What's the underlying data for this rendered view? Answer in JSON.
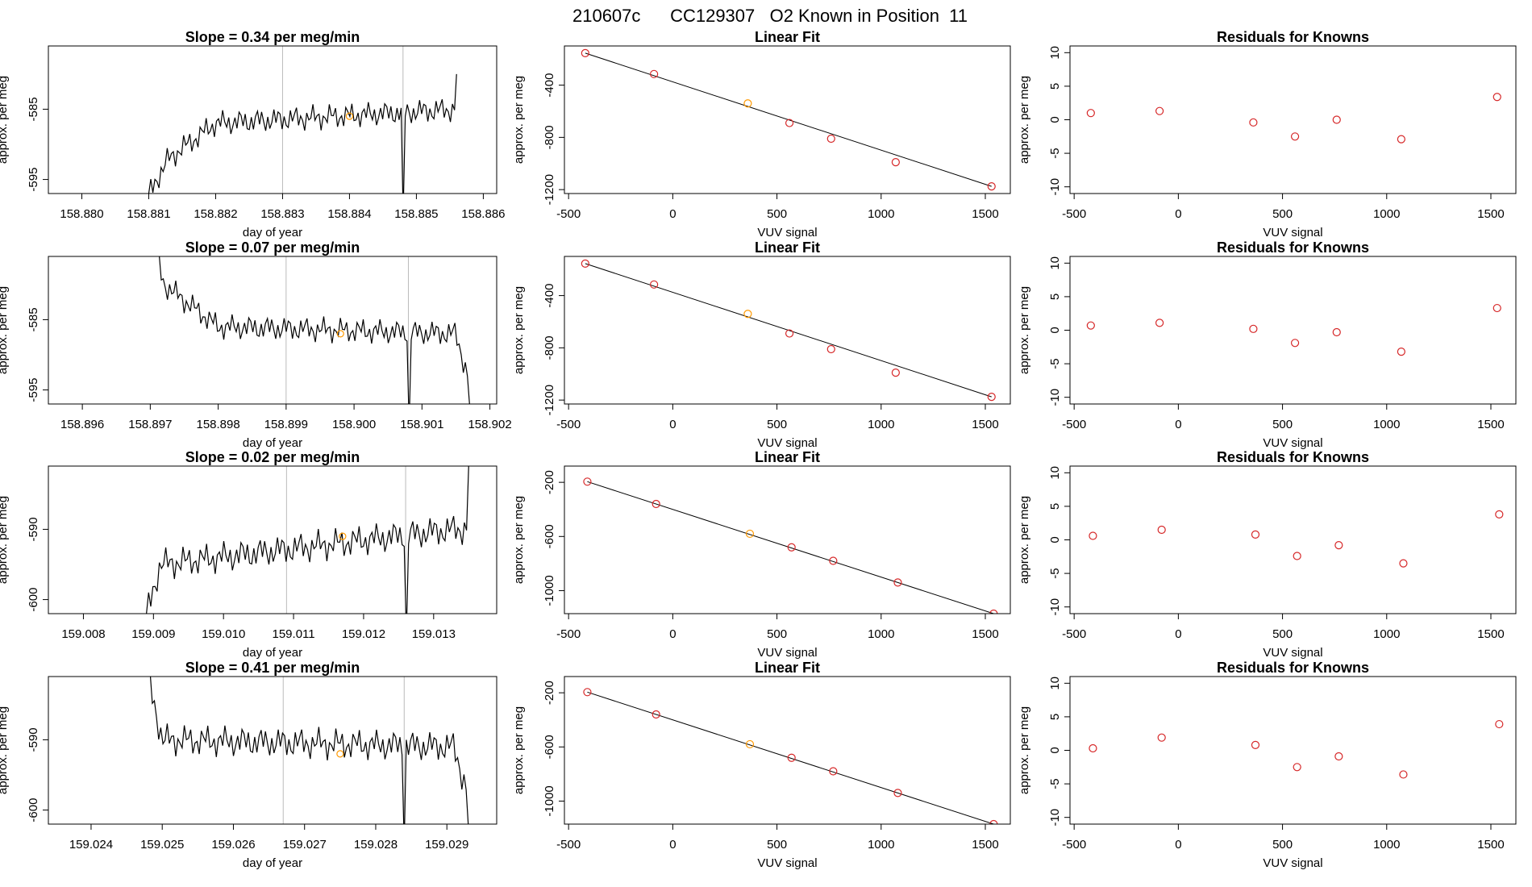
{
  "figure_title": "210607c      CC129307   O2 Known in Position  11",
  "colors": {
    "line": "#000000",
    "point": "#d62728",
    "highlight": "#ff9900",
    "vline": "#bbbbbb"
  },
  "chart_data": [
    {
      "row": 1,
      "series_plot": {
        "type": "line",
        "title": "Slope =  0.34  per meg/min",
        "xlabel": "day of year",
        "ylabel": "approx. per meg",
        "xlim": [
          158.8795,
          158.8862
        ],
        "ylim": [
          -597,
          -576
        ],
        "xticks": [
          158.88,
          158.881,
          158.882,
          158.883,
          158.884,
          158.885,
          158.886
        ],
        "xtick_labels": [
          "158.880",
          "158.881",
          "158.882",
          "158.883",
          "158.884",
          "158.885",
          "158.886"
        ],
        "yticks": [
          -585,
          -595
        ],
        "ytick_labels": [
          "-585",
          "-595"
        ],
        "vlines": [
          158.883,
          158.8848
        ],
        "marker": {
          "x": 158.884,
          "y": -586
        },
        "trace_start": {
          "x": 158.881,
          "y": -597
        },
        "trace_end": {
          "x": 158.8856,
          "y": -580
        },
        "anomaly": {
          "x": 158.8848,
          "y": -597
        },
        "segments": [
          {
            "x0": 158.881,
            "x1": 158.8813,
            "y0": -597,
            "y1": -592
          },
          {
            "x0": 158.8813,
            "x1": 158.882,
            "y0": -592,
            "y1": -587
          },
          {
            "x0": 158.882,
            "x1": 158.8856,
            "y0": -587,
            "y1": -585
          }
        ],
        "amplitude": 1.6
      },
      "fit_plot": {
        "type": "scatter",
        "title": "Linear Fit",
        "xlabel": "VUV signal",
        "ylabel": "approx. per meg",
        "xlim": [
          -520,
          1620
        ],
        "ylim": [
          -1230,
          -100
        ],
        "xticks": [
          -500,
          0,
          500,
          1000,
          1500
        ],
        "xtick_labels": [
          "-500",
          "0",
          "500",
          "1000",
          "1500"
        ],
        "yticks": [
          -400,
          -800,
          -1200
        ],
        "ytick_labels": [
          "-400",
          "-800",
          "-1200"
        ],
        "x": [
          -420,
          -90,
          360,
          560,
          760,
          1070,
          1530
        ],
        "y": [
          -155,
          -315,
          -540,
          -690,
          -810,
          -990,
          -1175
        ],
        "highlight_index": 2,
        "fit_line": {
          "x": [
            -420,
            1530
          ],
          "y": [
            -155,
            -1175
          ]
        }
      },
      "residual_plot": {
        "type": "scatter",
        "title": "Residuals for Knowns",
        "xlabel": "VUV signal",
        "ylabel": "approx. per meg",
        "xlim": [
          -520,
          1620
        ],
        "ylim": [
          -11,
          11
        ],
        "xticks": [
          -500,
          0,
          500,
          1000,
          1500
        ],
        "xtick_labels": [
          "-500",
          "0",
          "500",
          "1000",
          "1500"
        ],
        "yticks": [
          10,
          5,
          0,
          -5,
          -10
        ],
        "ytick_labels": [
          "10",
          "5",
          "0",
          "-5",
          "-10"
        ],
        "x": [
          -420,
          -90,
          360,
          560,
          760,
          1070,
          1530
        ],
        "y": [
          1.0,
          1.3,
          -0.4,
          -2.5,
          0.0,
          -2.9,
          3.4
        ]
      }
    },
    {
      "row": 2,
      "series_plot": {
        "type": "line",
        "title": "Slope =  0.07  per meg/min",
        "xlabel": "day of year",
        "ylabel": "approx. per meg",
        "xlim": [
          158.8955,
          158.9021
        ],
        "ylim": [
          -597,
          -576
        ],
        "xticks": [
          158.896,
          158.897,
          158.898,
          158.899,
          158.9,
          158.901,
          158.902
        ],
        "xtick_labels": [
          "158.896",
          "158.897",
          "158.898",
          "158.899",
          "158.900",
          "158.901",
          "158.902"
        ],
        "yticks": [
          -585,
          -595
        ],
        "ytick_labels": [
          "-585",
          "-595"
        ],
        "vlines": [
          158.899,
          158.9008
        ],
        "marker": {
          "x": 158.8998,
          "y": -587
        },
        "trace_start": {
          "x": 158.8971,
          "y": -576
        },
        "trace_end": {
          "x": 158.9017,
          "y": -597
        },
        "anomaly": {
          "x": 158.9008,
          "y": -597
        },
        "segments": [
          {
            "x0": 158.8971,
            "x1": 158.8972,
            "y0": -576,
            "y1": -580
          },
          {
            "x0": 158.8972,
            "x1": 158.898,
            "y0": -580,
            "y1": -586
          },
          {
            "x0": 158.898,
            "x1": 158.9015,
            "y0": -586,
            "y1": -587
          },
          {
            "x0": 158.9015,
            "x1": 158.9017,
            "y0": -587,
            "y1": -594
          }
        ],
        "amplitude": 1.6
      },
      "fit_plot": {
        "type": "scatter",
        "title": "Linear Fit",
        "xlabel": "VUV signal",
        "ylabel": "approx. per meg",
        "xlim": [
          -520,
          1620
        ],
        "ylim": [
          -1230,
          -100
        ],
        "xticks": [
          -500,
          0,
          500,
          1000,
          1500
        ],
        "xtick_labels": [
          "-500",
          "0",
          "500",
          "1000",
          "1500"
        ],
        "yticks": [
          -400,
          -800,
          -1200
        ],
        "ytick_labels": [
          "-400",
          "-800",
          "-1200"
        ],
        "x": [
          -420,
          -90,
          360,
          560,
          760,
          1070,
          1530
        ],
        "y": [
          -155,
          -315,
          -540,
          -690,
          -810,
          -990,
          -1175
        ],
        "highlight_index": 2,
        "fit_line": {
          "x": [
            -420,
            1530
          ],
          "y": [
            -155,
            -1175
          ]
        }
      },
      "residual_plot": {
        "type": "scatter",
        "title": "Residuals for Knowns",
        "xlabel": "VUV signal",
        "ylabel": "approx. per meg",
        "xlim": [
          -520,
          1620
        ],
        "ylim": [
          -11,
          11
        ],
        "xticks": [
          -500,
          0,
          500,
          1000,
          1500
        ],
        "xtick_labels": [
          "-500",
          "0",
          "500",
          "1000",
          "1500"
        ],
        "yticks": [
          10,
          5,
          0,
          -5,
          -10
        ],
        "ytick_labels": [
          "10",
          "5",
          "0",
          "-5",
          "-10"
        ],
        "x": [
          -420,
          -90,
          360,
          560,
          760,
          1070,
          1530
        ],
        "y": [
          0.7,
          1.1,
          0.2,
          -1.9,
          -0.3,
          -3.2,
          3.3
        ]
      }
    },
    {
      "row": 3,
      "series_plot": {
        "type": "line",
        "title": "Slope =  0.02  per meg/min",
        "xlabel": "day of year",
        "ylabel": "approx. per meg",
        "xlim": [
          159.0075,
          159.0139
        ],
        "ylim": [
          -602,
          -581
        ],
        "xticks": [
          159.008,
          159.009,
          159.01,
          159.011,
          159.012,
          159.013
        ],
        "xtick_labels": [
          "159.008",
          "159.009",
          "159.010",
          "159.011",
          "159.012",
          "159.013"
        ],
        "yticks": [
          -590,
          -600
        ],
        "ytick_labels": [
          "-590",
          "-600"
        ],
        "vlines": [
          159.0109,
          159.0126
        ],
        "marker": {
          "x": 159.0117,
          "y": -591
        },
        "trace_start": {
          "x": 159.0089,
          "y": -602
        },
        "trace_end": {
          "x": 159.0135,
          "y": -581
        },
        "anomaly": {
          "x": 159.0126,
          "y": -602
        },
        "segments": [
          {
            "x0": 159.0089,
            "x1": 159.0091,
            "y0": -602,
            "y1": -595
          },
          {
            "x0": 159.0091,
            "x1": 159.0133,
            "y0": -595,
            "y1": -590
          }
        ],
        "amplitude": 2.0
      },
      "fit_plot": {
        "type": "scatter",
        "title": "Linear Fit",
        "xlabel": "VUV signal",
        "ylabel": "approx. per meg",
        "xlim": [
          -520,
          1620
        ],
        "ylim": [
          -1170,
          -80
        ],
        "xticks": [
          -500,
          0,
          500,
          1000,
          1500
        ],
        "xtick_labels": [
          "-500",
          "0",
          "500",
          "1000",
          "1500"
        ],
        "yticks": [
          -200,
          -600,
          -1000
        ],
        "ytick_labels": [
          "-200",
          "-600",
          "-1000"
        ],
        "x": [
          -410,
          -80,
          370,
          570,
          770,
          1080,
          1540
        ],
        "y": [
          -195,
          -360,
          -580,
          -680,
          -780,
          -940,
          -1170
        ],
        "highlight_index": 2,
        "fit_line": {
          "x": [
            -410,
            1540
          ],
          "y": [
            -195,
            -1170
          ]
        }
      },
      "residual_plot": {
        "type": "scatter",
        "title": "Residuals for Knowns",
        "xlabel": "VUV signal",
        "ylabel": "approx. per meg",
        "xlim": [
          -520,
          1620
        ],
        "ylim": [
          -11,
          11
        ],
        "xticks": [
          -500,
          0,
          500,
          1000,
          1500
        ],
        "xtick_labels": [
          "-500",
          "0",
          "500",
          "1000",
          "1500"
        ],
        "yticks": [
          10,
          5,
          0,
          -5,
          -10
        ],
        "ytick_labels": [
          "10",
          "5",
          "0",
          "-5",
          "-10"
        ],
        "x": [
          -410,
          -80,
          370,
          570,
          770,
          1080,
          1540
        ],
        "y": [
          0.6,
          1.5,
          0.8,
          -2.4,
          -0.8,
          -3.5,
          3.8
        ]
      }
    },
    {
      "row": 4,
      "series_plot": {
        "type": "line",
        "title": "Slope =  0.41  per meg/min",
        "xlabel": "day of year",
        "ylabel": "approx. per meg",
        "xlim": [
          159.0234,
          159.0297
        ],
        "ylim": [
          -602,
          -581
        ],
        "xticks": [
          159.024,
          159.025,
          159.026,
          159.027,
          159.028,
          159.029
        ],
        "xtick_labels": [
          "159.024",
          "159.025",
          "159.026",
          "159.027",
          "159.028",
          "159.029"
        ],
        "yticks": [
          -590,
          -600
        ],
        "ytick_labels": [
          "-590",
          "-600"
        ],
        "vlines": [
          159.0267,
          159.0284
        ],
        "marker": {
          "x": 159.0275,
          "y": -592
        },
        "trace_start": {
          "x": 159.0248,
          "y": -581
        },
        "trace_end": {
          "x": 159.0293,
          "y": -602
        },
        "anomaly": {
          "x": 159.0284,
          "y": -602
        },
        "segments": [
          {
            "x0": 159.0248,
            "x1": 159.025,
            "y0": -581,
            "y1": -590
          },
          {
            "x0": 159.025,
            "x1": 159.0291,
            "y0": -590,
            "y1": -591
          },
          {
            "x0": 159.0291,
            "x1": 159.0293,
            "y0": -591,
            "y1": -598
          }
        ],
        "amplitude": 2.0
      },
      "fit_plot": {
        "type": "scatter",
        "title": "Linear Fit",
        "xlabel": "VUV signal",
        "ylabel": "approx. per meg",
        "xlim": [
          -520,
          1620
        ],
        "ylim": [
          -1170,
          -80
        ],
        "xticks": [
          -500,
          0,
          500,
          1000,
          1500
        ],
        "xtick_labels": [
          "-500",
          "0",
          "500",
          "1000",
          "1500"
        ],
        "yticks": [
          -200,
          -600,
          -1000
        ],
        "ytick_labels": [
          "-200",
          "-600",
          "-1000"
        ],
        "x": [
          -410,
          -80,
          370,
          570,
          770,
          1080,
          1540
        ],
        "y": [
          -195,
          -360,
          -580,
          -680,
          -780,
          -940,
          -1170
        ],
        "highlight_index": 2,
        "fit_line": {
          "x": [
            -410,
            1540
          ],
          "y": [
            -195,
            -1170
          ]
        }
      },
      "residual_plot": {
        "type": "scatter",
        "title": "Residuals for Knowns",
        "xlabel": "VUV signal",
        "ylabel": "approx. per meg",
        "xlim": [
          -520,
          1620
        ],
        "ylim": [
          -11,
          11
        ],
        "xticks": [
          -500,
          0,
          500,
          1000,
          1500
        ],
        "xtick_labels": [
          "-500",
          "0",
          "500",
          "1000",
          "1500"
        ],
        "yticks": [
          10,
          5,
          0,
          -5,
          -10
        ],
        "ytick_labels": [
          "10",
          "5",
          "0",
          "-5",
          "-10"
        ],
        "x": [
          -410,
          -80,
          370,
          570,
          770,
          1080,
          1540
        ],
        "y": [
          0.3,
          1.9,
          0.8,
          -2.5,
          -0.9,
          -3.6,
          3.9
        ]
      }
    }
  ]
}
